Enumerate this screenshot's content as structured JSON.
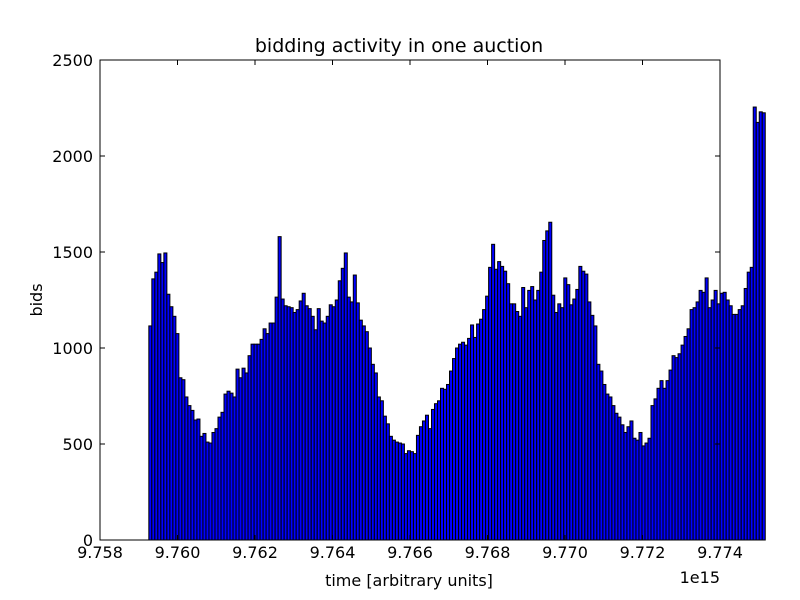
{
  "chart_data": {
    "type": "bar",
    "title": "bidding activity in one auction",
    "xlabel": "time [arbitrary units]",
    "ylabel": "bids",
    "x_offset_label": "1e15",
    "xlim": [
      9.758,
      9.774
    ],
    "ylim": [
      0,
      2500
    ],
    "xticks": [
      9.758,
      9.76,
      9.762,
      9.764,
      9.766,
      9.768,
      9.77,
      9.772,
      9.774
    ],
    "xtick_labels": [
      "9.758",
      "9.760",
      "9.762",
      "9.764",
      "9.766",
      "9.768",
      "9.770",
      "9.772",
      "9.774"
    ],
    "yticks": [
      0,
      500,
      1000,
      1500,
      2000,
      2500
    ],
    "ytick_labels": [
      "0",
      "500",
      "1000",
      "1500",
      "2000",
      "2500"
    ],
    "grid": false,
    "bar_color": "#0000ff",
    "bin_start": 9.75926,
    "bin_width": 7.76e-05,
    "values": [
      1115,
      1360,
      1395,
      1490,
      1445,
      1495,
      1280,
      1215,
      1165,
      1075,
      845,
      835,
      745,
      700,
      675,
      625,
      630,
      540,
      555,
      510,
      505,
      560,
      580,
      640,
      665,
      760,
      775,
      765,
      745,
      890,
      845,
      895,
      870,
      960,
      1020,
      1020,
      1020,
      1045,
      1100,
      1075,
      1130,
      1130,
      1265,
      1580,
      1255,
      1220,
      1215,
      1210,
      1185,
      1200,
      1245,
      1285,
      1220,
      1205,
      1165,
      1095,
      1205,
      1140,
      1130,
      1165,
      1225,
      1215,
      1250,
      1350,
      1415,
      1495,
      1265,
      1240,
      1380,
      1235,
      1145,
      1115,
      1085,
      1000,
      915,
      870,
      745,
      725,
      645,
      605,
      540,
      520,
      510,
      505,
      500,
      450,
      465,
      460,
      450,
      545,
      590,
      620,
      650,
      580,
      680,
      710,
      725,
      790,
      785,
      810,
      880,
      945,
      1000,
      1020,
      1030,
      1015,
      1050,
      1120,
      1055,
      1125,
      1150,
      1200,
      1270,
      1420,
      1540,
      1410,
      1450,
      1425,
      1400,
      1335,
      1230,
      1230,
      1190,
      1165,
      1315,
      1210,
      1300,
      1320,
      1250,
      1300,
      1395,
      1560,
      1610,
      1655,
      1275,
      1185,
      1230,
      1210,
      1365,
      1330,
      1225,
      1255,
      1305,
      1425,
      1400,
      1385,
      1240,
      1170,
      1115,
      915,
      880,
      810,
      760,
      745,
      700,
      660,
      640,
      600,
      560,
      590,
      620,
      530,
      520,
      560,
      490,
      505,
      530,
      700,
      735,
      790,
      830,
      790,
      830,
      885,
      960,
      950,
      970,
      1015,
      1060,
      1100,
      1200,
      1210,
      1240,
      1300,
      1290,
      1365,
      1210,
      1250,
      1300,
      1230,
      1285,
      1290,
      1250,
      1220,
      1175,
      1175,
      1200,
      1220,
      1310,
      1395,
      1420,
      2255,
      2175,
      2230,
      2225
    ]
  }
}
